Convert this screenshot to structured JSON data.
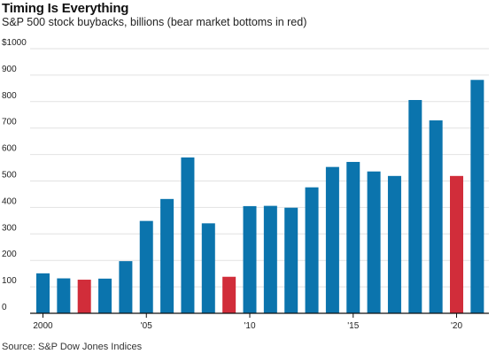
{
  "chart_data": {
    "type": "bar",
    "title": "Timing Is Everything",
    "subtitle": "S&P 500 stock buybacks, billions (bear market bottoms in red)",
    "source": "Source: S&P Dow Jones Indices",
    "categories": [
      "2000",
      "2001",
      "2002",
      "2003",
      "2004",
      "2005",
      "2006",
      "2007",
      "2008",
      "2009",
      "2010",
      "2011",
      "2012",
      "2013",
      "2014",
      "2015",
      "2016",
      "2017",
      "2018",
      "2019",
      "2020",
      "2021"
    ],
    "values": [
      151,
      132,
      127,
      131,
      197,
      349,
      432,
      589,
      340,
      138,
      405,
      406,
      399,
      476,
      553,
      572,
      536,
      519,
      806,
      729,
      519,
      882
    ],
    "highlight": [
      false,
      false,
      true,
      false,
      false,
      false,
      false,
      false,
      false,
      true,
      false,
      false,
      false,
      false,
      false,
      false,
      false,
      false,
      false,
      false,
      true,
      false
    ],
    "colors": {
      "bar": "#0b74ad",
      "highlight": "#d12d3a",
      "grid": "#e2e2e2",
      "baseline": "#111111"
    },
    "ylim": [
      0,
      1000
    ],
    "yticks": [
      {
        "value": 0,
        "label": "0"
      },
      {
        "value": 100,
        "label": "100"
      },
      {
        "value": 200,
        "label": "200"
      },
      {
        "value": 300,
        "label": "300"
      },
      {
        "value": 400,
        "label": "400"
      },
      {
        "value": 500,
        "label": "500"
      },
      {
        "value": 600,
        "label": "600"
      },
      {
        "value": 700,
        "label": "700"
      },
      {
        "value": 800,
        "label": "800"
      },
      {
        "value": 900,
        "label": "900"
      },
      {
        "value": 1000,
        "label": "$1000"
      }
    ],
    "xticks": [
      {
        "category": "2000",
        "label": "2000"
      },
      {
        "category": "2005",
        "label": "'05"
      },
      {
        "category": "2010",
        "label": "'10"
      },
      {
        "category": "2015",
        "label": "'15"
      },
      {
        "category": "2020",
        "label": "'20"
      }
    ],
    "grid": true
  }
}
